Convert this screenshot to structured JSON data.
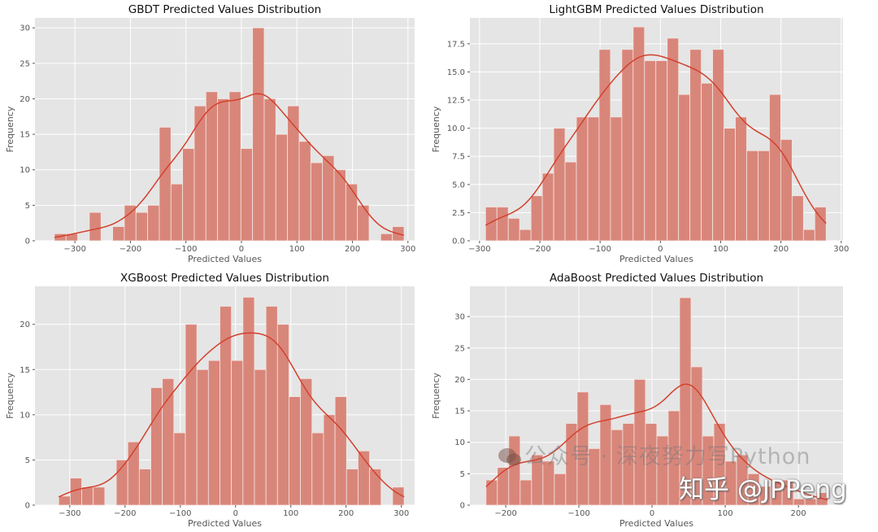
{
  "chart_data": [
    {
      "type": "bar",
      "title": "GBDT Predicted Values Distribution",
      "xlabel": "Predicted Values",
      "ylabel": "Frequency",
      "bin_range": [
        -337,
        293
      ],
      "values": [
        1,
        1,
        0,
        4,
        0,
        2,
        5,
        4,
        5,
        16,
        8,
        13,
        19,
        21,
        20,
        21,
        13,
        30,
        20,
        15,
        19,
        14,
        11,
        12,
        10,
        8,
        5,
        0,
        1,
        2
      ],
      "xlim": [
        -372,
        312
      ],
      "ylim": [
        0,
        31.4
      ],
      "xticks": [
        -300,
        -200,
        -100,
        0,
        100,
        200,
        300
      ],
      "yticks": [
        0,
        5,
        10,
        15,
        20,
        25,
        30
      ],
      "ytick_labels": [
        "0",
        "5",
        "10",
        "15",
        "20",
        "25",
        "30"
      ],
      "kde": true,
      "grid": true
    },
    {
      "type": "bar",
      "title": "LightGBM Predicted Values Distribution",
      "xlabel": "Predicted Values",
      "ylabel": "Frequency",
      "bin_range": [
        -290,
        275
      ],
      "values": [
        3,
        3,
        2,
        1,
        4,
        6,
        10,
        7,
        11,
        11,
        17,
        11,
        17,
        19,
        16,
        16,
        18,
        13,
        17,
        14,
        17,
        10,
        11,
        8,
        8,
        13,
        9,
        4,
        1,
        3
      ],
      "xlim": [
        -316,
        303
      ],
      "ylim": [
        0,
        19.8
      ],
      "xticks": [
        -300,
        -200,
        -100,
        0,
        100,
        200,
        300
      ],
      "yticks": [
        0,
        2.5,
        5,
        7.5,
        10,
        12.5,
        15,
        17.5
      ],
      "ytick_labels": [
        "0.0",
        "2.5",
        "5.0",
        "7.5",
        "10.0",
        "12.5",
        "15.0",
        "17.5"
      ],
      "kde": true,
      "grid": true
    },
    {
      "type": "bar",
      "title": "XGBoost Predicted Values Distribution",
      "xlabel": "Predicted Values",
      "ylabel": "Frequency",
      "bin_range": [
        -320,
        305
      ],
      "values": [
        1,
        3,
        2,
        2,
        0,
        5,
        7,
        4,
        13,
        14,
        8,
        20,
        15,
        16,
        22,
        16,
        23,
        15,
        22,
        20,
        12,
        14,
        8,
        10,
        12,
        4,
        6,
        4,
        0,
        2
      ],
      "xlim": [
        -363,
        324
      ],
      "ylim": [
        0,
        24.2
      ],
      "xticks": [
        -300,
        -200,
        -100,
        0,
        100,
        200,
        300
      ],
      "yticks": [
        0,
        5,
        10,
        15,
        20
      ],
      "ytick_labels": [
        "0",
        "5",
        "10",
        "15",
        "20"
      ],
      "kde": true,
      "grid": true
    },
    {
      "type": "bar",
      "title": "AdaBoost Predicted Values Distribution",
      "xlabel": "Predicted Values",
      "ylabel": "Frequency",
      "bin_range": [
        -227,
        240
      ],
      "values": [
        4,
        6,
        11,
        4,
        8,
        7,
        5,
        13,
        18,
        9,
        16,
        12,
        13,
        20,
        13,
        11,
        15,
        33,
        22,
        11,
        13,
        7,
        8,
        5,
        3,
        4,
        4,
        1,
        1,
        2
      ],
      "xlim": [
        -249,
        261
      ],
      "ylim": [
        0,
        34.8
      ],
      "xticks": [
        -200,
        -100,
        0,
        100,
        200
      ],
      "yticks": [
        0,
        5,
        10,
        15,
        20,
        25,
        30
      ],
      "ytick_labels": [
        "0",
        "5",
        "10",
        "15",
        "20",
        "25",
        "30"
      ],
      "kde": true,
      "grid": true
    }
  ],
  "colors": {
    "bar": "#d9867a",
    "kde": "#d2412e",
    "plot_bg": "#e5e5e5",
    "grid": "#ffffff",
    "text": "#555555"
  },
  "watermark": {
    "account": "公众号 · 深夜努力写Python",
    "brand": "知乎 @JPPeng",
    "logo_icon": "wechat-icon"
  }
}
